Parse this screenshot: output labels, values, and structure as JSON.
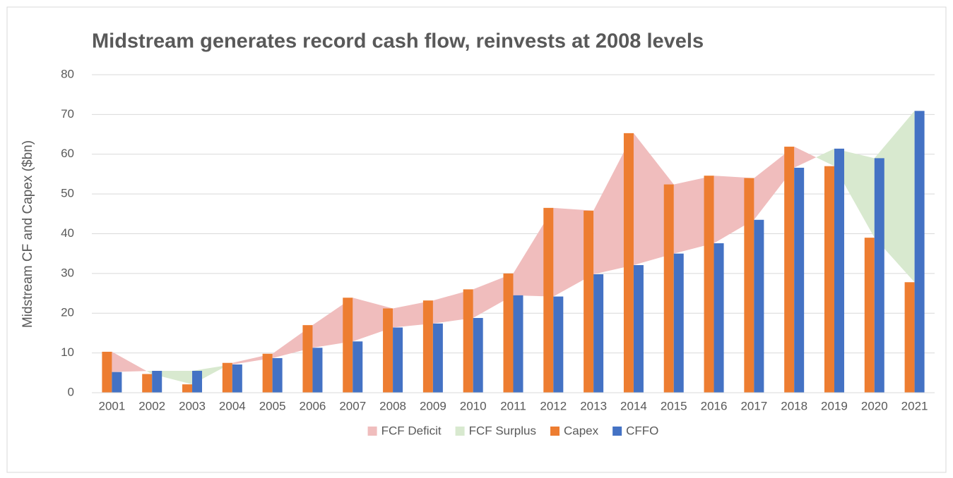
{
  "chart_data": {
    "type": "bar",
    "title": "Midstream generates record cash flow, reinvests at 2008 levels",
    "y_label": "Midstream CF and Capex ($bn)",
    "categories": [
      "2001",
      "2002",
      "2003",
      "2004",
      "2005",
      "2006",
      "2007",
      "2008",
      "2009",
      "2010",
      "2011",
      "2012",
      "2013",
      "2014",
      "2015",
      "2016",
      "2017",
      "2018",
      "2019",
      "2020",
      "2021"
    ],
    "series": [
      {
        "name": "FCF Deficit",
        "color": "#f0bdbd"
      },
      {
        "name": "FCF Surplus",
        "color": "#d8e9cf"
      },
      {
        "name": "Capex",
        "color": "#ed7d31",
        "values": [
          10.3,
          4.7,
          2.1,
          7.5,
          9.8,
          17,
          23.9,
          21.2,
          23.2,
          26,
          30,
          46.5,
          45.8,
          65.3,
          52.4,
          54.6,
          54,
          61.9,
          57,
          39,
          27.8
        ]
      },
      {
        "name": "CFFO",
        "color": "#4472c4",
        "values": [
          5.2,
          5.5,
          5.5,
          7.1,
          8.7,
          11.3,
          12.9,
          16.4,
          17.4,
          18.8,
          24.5,
          24.2,
          29.8,
          32.1,
          35,
          37.6,
          43.5,
          56.6,
          61.4,
          59,
          70.9
        ]
      }
    ],
    "ylim": [
      0,
      80
    ],
    "yticks": [
      0,
      10,
      20,
      30,
      40,
      50,
      60,
      70,
      80
    ],
    "grid": true,
    "legend": "bottom"
  }
}
